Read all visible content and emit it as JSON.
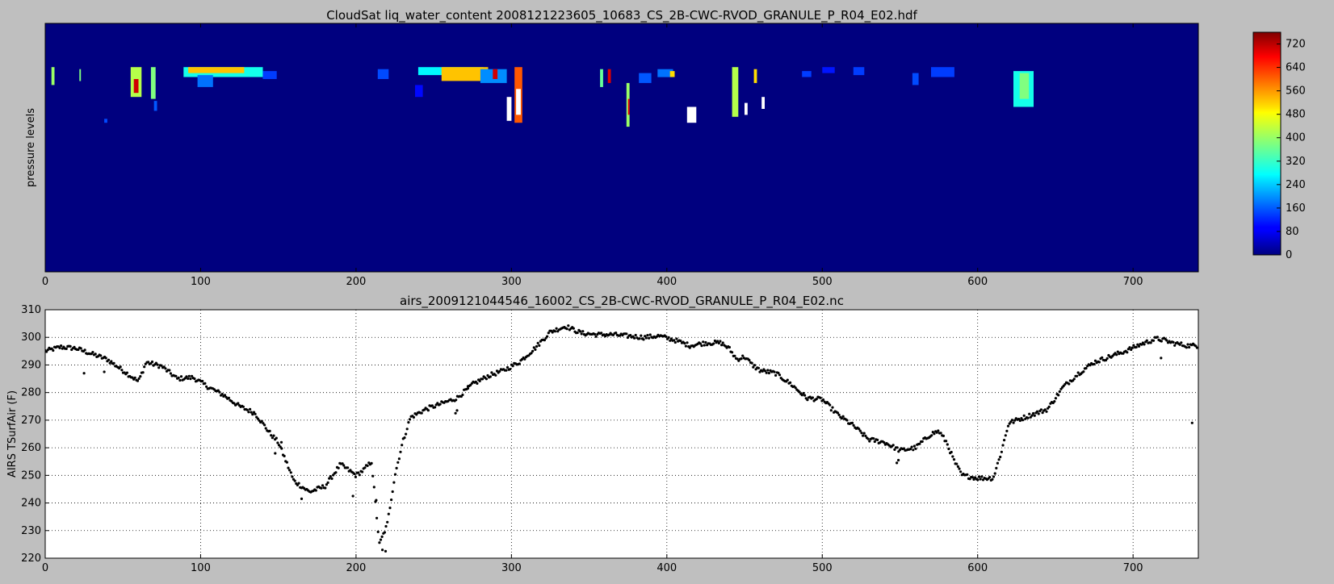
{
  "chart_data": [
    {
      "type": "heatmap",
      "title": "CloudSat liq_water_content   2008121223605_10683_CS_2B-CWC-RVOD_GRANULE_P_R04_E02.hdf",
      "xlabel": "",
      "ylabel": "pressure levels",
      "xlim": [
        0,
        742
      ],
      "x_ticks": [
        0,
        100,
        200,
        300,
        400,
        500,
        600,
        700
      ],
      "y_ticks_visible": false,
      "grid": false,
      "background_value": 0,
      "colormap": "jet",
      "colorbar": {
        "range": [
          0,
          760
        ],
        "ticks": [
          0,
          80,
          160,
          240,
          320,
          400,
          480,
          560,
          640,
          720
        ]
      },
      "levels_range": [
        0,
        125
      ],
      "clouds": [
        {
          "x0": 4,
          "x1": 6,
          "l0": 22,
          "l1": 31,
          "value": 400
        },
        {
          "x0": 22,
          "x1": 23,
          "l0": 23,
          "l1": 29,
          "value": 380
        },
        {
          "x0": 38,
          "x1": 40,
          "l0": 48,
          "l1": 50,
          "value": 150
        },
        {
          "x0": 55,
          "x1": 62,
          "l0": 22,
          "l1": 37,
          "value": 420
        },
        {
          "x0": 57,
          "x1": 60,
          "l0": 28,
          "l1": 35,
          "value": 700
        },
        {
          "x0": 68,
          "x1": 71,
          "l0": 22,
          "l1": 38,
          "value": 380
        },
        {
          "x0": 70,
          "x1": 72,
          "l0": 39,
          "l1": 44,
          "value": 160
        },
        {
          "x0": 89,
          "x1": 140,
          "l0": 22,
          "l1": 27,
          "value": 300
        },
        {
          "x0": 92,
          "x1": 128,
          "l0": 22,
          "l1": 25,
          "value": 520
        },
        {
          "x0": 98,
          "x1": 108,
          "l0": 26,
          "l1": 32,
          "value": 180
        },
        {
          "x0": 140,
          "x1": 149,
          "l0": 24,
          "l1": 28,
          "value": 140
        },
        {
          "x0": 214,
          "x1": 221,
          "l0": 23,
          "l1": 28,
          "value": 150
        },
        {
          "x0": 238,
          "x1": 243,
          "l0": 31,
          "l1": 37,
          "value": 100
        },
        {
          "x0": 240,
          "x1": 282,
          "l0": 22,
          "l1": 26,
          "value": 280
        },
        {
          "x0": 255,
          "x1": 285,
          "l0": 22,
          "l1": 29,
          "value": 520
        },
        {
          "x0": 280,
          "x1": 297,
          "l0": 23,
          "l1": 30,
          "value": 200
        },
        {
          "x0": 288,
          "x1": 291,
          "l0": 23,
          "l1": 28,
          "value": 700
        },
        {
          "x0": 297,
          "x1": 300,
          "l0": 37,
          "l1": 49,
          "value": 780
        },
        {
          "x0": 302,
          "x1": 307,
          "l0": 22,
          "l1": 50,
          "value": 600
        },
        {
          "x0": 303,
          "x1": 306,
          "l0": 33,
          "l1": 46,
          "value": 780
        },
        {
          "x0": 357,
          "x1": 359,
          "l0": 23,
          "l1": 32,
          "value": 360
        },
        {
          "x0": 362,
          "x1": 364,
          "l0": 23,
          "l1": 30,
          "value": 690
        },
        {
          "x0": 374,
          "x1": 376,
          "l0": 30,
          "l1": 52,
          "value": 400
        },
        {
          "x0": 375,
          "x1": 376,
          "l0": 38,
          "l1": 46,
          "value": 680
        },
        {
          "x0": 382,
          "x1": 390,
          "l0": 25,
          "l1": 30,
          "value": 160
        },
        {
          "x0": 394,
          "x1": 404,
          "l0": 23,
          "l1": 27,
          "value": 180
        },
        {
          "x0": 402,
          "x1": 405,
          "l0": 24,
          "l1": 27,
          "value": 500
        },
        {
          "x0": 413,
          "x1": 419,
          "l0": 42,
          "l1": 50,
          "value": 780
        },
        {
          "x0": 442,
          "x1": 446,
          "l0": 22,
          "l1": 47,
          "value": 420
        },
        {
          "x0": 450,
          "x1": 452,
          "l0": 40,
          "l1": 46,
          "value": 780
        },
        {
          "x0": 456,
          "x1": 458,
          "l0": 23,
          "l1": 30,
          "value": 500
        },
        {
          "x0": 461,
          "x1": 463,
          "l0": 37,
          "l1": 43,
          "value": 780
        },
        {
          "x0": 487,
          "x1": 493,
          "l0": 24,
          "l1": 27,
          "value": 140
        },
        {
          "x0": 500,
          "x1": 508,
          "l0": 22,
          "l1": 25,
          "value": 110
        },
        {
          "x0": 520,
          "x1": 527,
          "l0": 22,
          "l1": 26,
          "value": 140
        },
        {
          "x0": 558,
          "x1": 562,
          "l0": 25,
          "l1": 31,
          "value": 150
        },
        {
          "x0": 570,
          "x1": 585,
          "l0": 22,
          "l1": 27,
          "value": 140
        },
        {
          "x0": 623,
          "x1": 636,
          "l0": 24,
          "l1": 42,
          "value": 300
        },
        {
          "x0": 627,
          "x1": 633,
          "l0": 25,
          "l1": 38,
          "value": 380
        }
      ]
    },
    {
      "type": "scatter",
      "title": "airs_2009121044546_16002_CS_2B-CWC-RVOD_GRANULE_P_R04_E02.nc",
      "xlabel": "",
      "ylabel": "AIRS TSurfAir (F)",
      "xlim": [
        0,
        742
      ],
      "ylim": [
        220,
        310
      ],
      "x_ticks": [
        0,
        100,
        200,
        300,
        400,
        500,
        600,
        700
      ],
      "y_ticks": [
        220,
        230,
        240,
        250,
        260,
        270,
        280,
        290,
        300,
        310
      ],
      "grid": true,
      "marker_color": "#000000",
      "trend": [
        [
          0,
          295
        ],
        [
          10,
          296.5
        ],
        [
          20,
          296
        ],
        [
          30,
          294
        ],
        [
          40,
          292
        ],
        [
          50,
          288
        ],
        [
          60,
          284
        ],
        [
          65,
          291
        ],
        [
          75,
          289.5
        ],
        [
          85,
          285
        ],
        [
          95,
          285.5
        ],
        [
          105,
          282
        ],
        [
          115,
          279
        ],
        [
          125,
          275
        ],
        [
          135,
          272.5
        ],
        [
          145,
          265
        ],
        [
          150,
          262
        ],
        [
          160,
          248
        ],
        [
          170,
          244
        ],
        [
          180,
          246
        ],
        [
          190,
          254
        ],
        [
          200,
          250
        ],
        [
          205,
          252
        ],
        [
          210,
          255
        ],
        [
          215,
          225
        ],
        [
          220,
          232
        ],
        [
          225,
          250
        ],
        [
          230,
          262
        ],
        [
          235,
          271
        ],
        [
          245,
          274
        ],
        [
          255,
          276
        ],
        [
          265,
          278
        ],
        [
          275,
          283
        ],
        [
          285,
          286
        ],
        [
          295,
          288
        ],
        [
          305,
          291
        ],
        [
          315,
          296
        ],
        [
          325,
          302
        ],
        [
          335,
          304
        ],
        [
          345,
          301.5
        ],
        [
          355,
          301
        ],
        [
          365,
          301
        ],
        [
          375,
          300.5
        ],
        [
          385,
          300
        ],
        [
          395,
          300.5
        ],
        [
          405,
          299
        ],
        [
          415,
          297
        ],
        [
          425,
          298
        ],
        [
          435,
          298
        ],
        [
          440,
          296
        ],
        [
          445,
          292
        ],
        [
          450,
          293
        ],
        [
          455,
          290
        ],
        [
          460,
          288
        ],
        [
          470,
          287
        ],
        [
          480,
          283
        ],
        [
          490,
          278
        ],
        [
          500,
          277.5
        ],
        [
          510,
          272
        ],
        [
          520,
          268
        ],
        [
          530,
          263
        ],
        [
          540,
          262
        ],
        [
          550,
          259
        ],
        [
          560,
          260
        ],
        [
          570,
          265
        ],
        [
          575,
          266
        ],
        [
          580,
          262
        ],
        [
          585,
          255
        ],
        [
          590,
          250
        ],
        [
          600,
          249
        ],
        [
          610,
          249
        ],
        [
          615,
          258
        ],
        [
          620,
          269
        ],
        [
          625,
          270
        ],
        [
          635,
          272
        ],
        [
          645,
          274
        ],
        [
          655,
          282
        ],
        [
          665,
          287
        ],
        [
          675,
          291
        ],
        [
          685,
          293
        ],
        [
          695,
          295
        ],
        [
          705,
          297.5
        ],
        [
          715,
          299.5
        ],
        [
          720,
          299
        ],
        [
          725,
          298
        ],
        [
          735,
          297
        ],
        [
          742,
          297
        ]
      ],
      "outliers": [
        [
          25,
          287
        ],
        [
          38,
          287.5
        ],
        [
          148,
          258
        ],
        [
          152,
          262
        ],
        [
          165,
          241.5
        ],
        [
          198,
          242.5
        ],
        [
          213,
          241
        ],
        [
          217,
          223
        ],
        [
          219,
          222.5
        ],
        [
          264,
          272.5
        ],
        [
          265,
          273.5
        ],
        [
          272,
          281.5
        ],
        [
          548,
          254.5
        ],
        [
          549,
          255.5
        ],
        [
          718,
          292.5
        ],
        [
          738,
          269
        ]
      ]
    }
  ]
}
